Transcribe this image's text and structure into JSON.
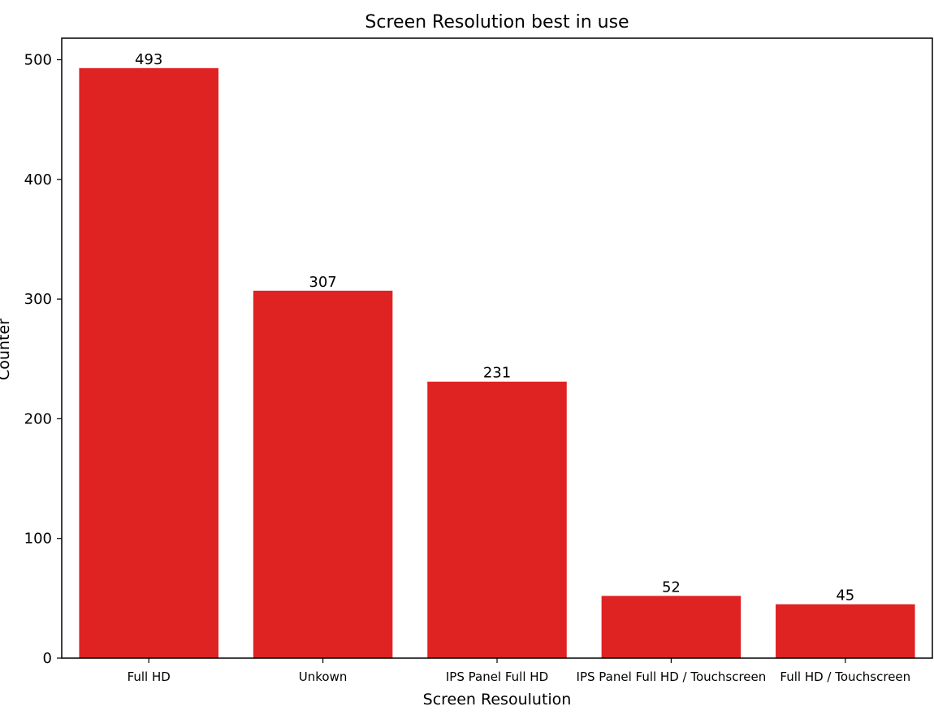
{
  "chart_data": {
    "type": "bar",
    "title": "Screen Resolution best in use",
    "xlabel": "Screen Resoulution",
    "ylabel": "Counter",
    "categories": [
      "Full HD",
      "Unkown",
      "IPS Panel Full HD",
      "IPS Panel Full HD / Touchscreen",
      "Full HD / Touchscreen"
    ],
    "values": [
      493,
      307,
      231,
      52,
      45
    ],
    "data_labels": [
      "493",
      "307",
      "231",
      "52",
      "45"
    ],
    "yticks": [
      0,
      100,
      200,
      300,
      400,
      500
    ],
    "ylim": [
      0,
      518
    ],
    "bar_color": "#df2222",
    "grid": false
  }
}
